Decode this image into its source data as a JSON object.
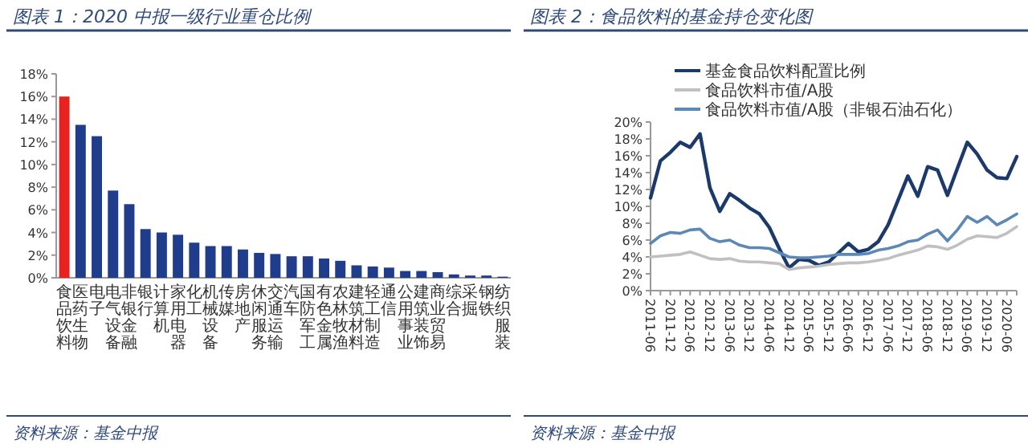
{
  "chart_data": [
    {
      "type": "bar",
      "title": "图表 1：2020 中报一级行业重仓比例",
      "categories": [
        "食品饮料",
        "医药生物",
        "电子",
        "电气设备",
        "非银金融",
        "银行",
        "计算机",
        "家用电器",
        "化工",
        "机械设备",
        "传媒",
        "房地产",
        "休闲服务",
        "交通运输",
        "汽车",
        "国防军工",
        "有色金属",
        "农林牧渔",
        "建筑材料",
        "轻工制造",
        "通信",
        "公用事业",
        "建筑装饰",
        "商业贸易",
        "综合",
        "采掘",
        "钢铁",
        "纺织服装"
      ],
      "values": [
        16,
        13.5,
        12.5,
        7.7,
        6.5,
        4.3,
        4.0,
        3.8,
        3.1,
        2.8,
        2.8,
        2.5,
        2.2,
        2.1,
        1.9,
        1.9,
        1.7,
        1.5,
        1.1,
        1.0,
        0.9,
        0.6,
        0.6,
        0.5,
        0.3,
        0.2,
        0.2,
        0.1
      ],
      "colors": [
        "#e8231f",
        "#1f3d8a",
        "#1f3d8a",
        "#1f3d8a",
        "#1f3d8a",
        "#1f3d8a",
        "#1f3d8a",
        "#1f3d8a",
        "#1f3d8a",
        "#1f3d8a",
        "#1f3d8a",
        "#1f3d8a",
        "#1f3d8a",
        "#1f3d8a",
        "#1f3d8a",
        "#1f3d8a",
        "#1f3d8a",
        "#1f3d8a",
        "#1f3d8a",
        "#1f3d8a",
        "#1f3d8a",
        "#1f3d8a",
        "#1f3d8a",
        "#1f3d8a",
        "#1f3d8a",
        "#1f3d8a",
        "#1f3d8a",
        "#1f3d8a"
      ],
      "ylim": [
        0,
        18
      ],
      "yticks": [
        {
          "value": 0,
          "label": "0%"
        },
        {
          "value": 2,
          "label": "2%"
        },
        {
          "value": 4,
          "label": "4%"
        },
        {
          "value": 6,
          "label": "6%"
        },
        {
          "value": 8,
          "label": "8%"
        },
        {
          "value": 10,
          "label": "10%"
        },
        {
          "value": 12,
          "label": "12%"
        },
        {
          "value": 14,
          "label": "14%"
        },
        {
          "value": 16,
          "label": "16%"
        },
        {
          "value": 18,
          "label": "18%"
        }
      ],
      "grid": false,
      "annotations": [
        "资料来源：基金中报"
      ]
    },
    {
      "type": "line",
      "title": "图表 2：食品饮料的基金持仓变化图",
      "categories": [
        "2011-06",
        null,
        "2011-12",
        null,
        "2012-06",
        null,
        "2012-12",
        null,
        "2013-06",
        null,
        "2013-12",
        null,
        "2014-06",
        null,
        "2014-12",
        null,
        "2015-06",
        null,
        "2015-12",
        null,
        "2016-06",
        null,
        "2016-12",
        null,
        "2017-06",
        null,
        "2017-12",
        null,
        "2018-06",
        null,
        "2018-12",
        null,
        "2019-06",
        null,
        "2019-12",
        null,
        "2020-06",
        null
      ],
      "series": [
        {
          "name": "基金食品饮料配置比例",
          "color": "#1b3a6b",
          "values": [
            11.0,
            15.4,
            16.4,
            17.6,
            17.0,
            18.6,
            12.2,
            9.4,
            11.5,
            10.7,
            9.8,
            9.1,
            7.5,
            5.0,
            2.7,
            3.7,
            3.6,
            3.0,
            3.4,
            4.5,
            5.6,
            4.6,
            4.9,
            5.8,
            7.8,
            10.7,
            13.6,
            11.2,
            14.7,
            14.3,
            11.3,
            14.5,
            17.6,
            16.2,
            14.3,
            13.4,
            13.3,
            15.9
          ]
        },
        {
          "name": "食品饮料市值/A股",
          "color": "#c0c0c0",
          "values": [
            4.0,
            4.1,
            4.2,
            4.3,
            4.6,
            4.2,
            3.8,
            3.7,
            3.8,
            3.5,
            3.4,
            3.4,
            3.3,
            3.2,
            2.5,
            2.7,
            2.8,
            2.9,
            3.1,
            3.2,
            3.3,
            3.3,
            3.4,
            3.6,
            3.8,
            4.2,
            4.5,
            4.8,
            5.3,
            5.2,
            4.9,
            5.4,
            6.1,
            6.5,
            6.4,
            6.3,
            6.8,
            7.6
          ]
        },
        {
          "name": "食品饮料市值/A股（非银石油石化）",
          "color": "#5b88b5",
          "values": [
            5.6,
            6.5,
            6.9,
            6.8,
            7.2,
            7.3,
            6.2,
            5.8,
            6.0,
            5.4,
            5.1,
            5.1,
            5.0,
            4.5,
            4.0,
            3.9,
            3.9,
            4.0,
            4.1,
            4.3,
            4.3,
            4.3,
            4.4,
            4.8,
            5.0,
            5.3,
            5.8,
            6.0,
            6.7,
            7.2,
            5.9,
            7.2,
            8.8,
            8.1,
            8.8,
            7.8,
            8.4,
            9.1
          ]
        }
      ],
      "ylim": [
        0,
        20
      ],
      "yticks": [
        {
          "value": 0,
          "label": "0%"
        },
        {
          "value": 2,
          "label": "2%"
        },
        {
          "value": 4,
          "label": "4%"
        },
        {
          "value": 6,
          "label": "6%"
        },
        {
          "value": 8,
          "label": "8%"
        },
        {
          "value": 10,
          "label": "10%"
        },
        {
          "value": 12,
          "label": "12%"
        },
        {
          "value": 14,
          "label": "14%"
        },
        {
          "value": 16,
          "label": "16%"
        },
        {
          "value": 18,
          "label": "18%"
        },
        {
          "value": 20,
          "label": "20%"
        }
      ],
      "grid": false,
      "legend": "top",
      "annotations": [
        "资料来源：基金中报"
      ]
    }
  ]
}
